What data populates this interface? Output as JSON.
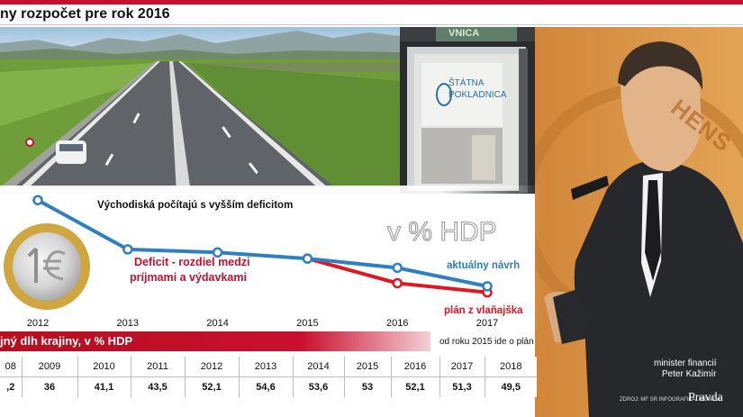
{
  "title": "ny rozpočet pre rok 2016",
  "bank_sign": {
    "line1": "ŠTÁTNA",
    "line2": "POKLADNICA"
  },
  "bank_top_text": "VNICA",
  "wall_text": "HENS",
  "colors": {
    "accent": "#c8102e",
    "proposal": "#2f7fc1",
    "plan": "#e2161f"
  },
  "chart_data": {
    "type": "line",
    "title": "Východiská počítajú s vyšším deficitom",
    "unit_label": "v % HDP",
    "x": [
      2012,
      2013,
      2014,
      2015,
      2016,
      2017
    ],
    "x_labels": [
      "2012",
      "2013",
      "2014",
      "2015",
      "2016",
      "2017"
    ],
    "series": [
      {
        "name": "aktuálny návrh",
        "x": [
          2012,
          2013,
          2014,
          2015,
          2016,
          2017
        ],
        "y": [
          4.3,
          2.7,
          2.6,
          2.4,
          2.1,
          1.5
        ]
      },
      {
        "name": "plán z vlaňajška",
        "x": [
          2015,
          2016,
          2017
        ],
        "y": [
          2.4,
          1.6,
          1.3
        ]
      }
    ],
    "ylim": [
      0.5,
      4.6
    ],
    "annotation": {
      "line1": "Deficit - rozdiel medzi",
      "line2": "príjmami a výdavkami"
    },
    "legend": "inline",
    "grid": false
  },
  "debt_table": {
    "title": "jný dlh krajiny, v % HDP",
    "note": "od roku 2015 ide o plán",
    "years": [
      "08",
      "2009",
      "2010",
      "2011",
      "2012",
      "2013",
      "2014",
      "2015",
      "2016",
      "2017",
      "2018"
    ],
    "values": [
      ",2",
      "36",
      "41,1",
      "43,5",
      "52,1",
      "54,6",
      "53,6",
      "53",
      "52,1",
      "51,3",
      "49,5"
    ]
  },
  "caption": {
    "line1": "minister financií",
    "line2": "Peter Kažimír"
  },
  "credit": "ZDROJ: MF SR  INFOGRAFIKA: PRAVDA",
  "brand": "Pravda"
}
